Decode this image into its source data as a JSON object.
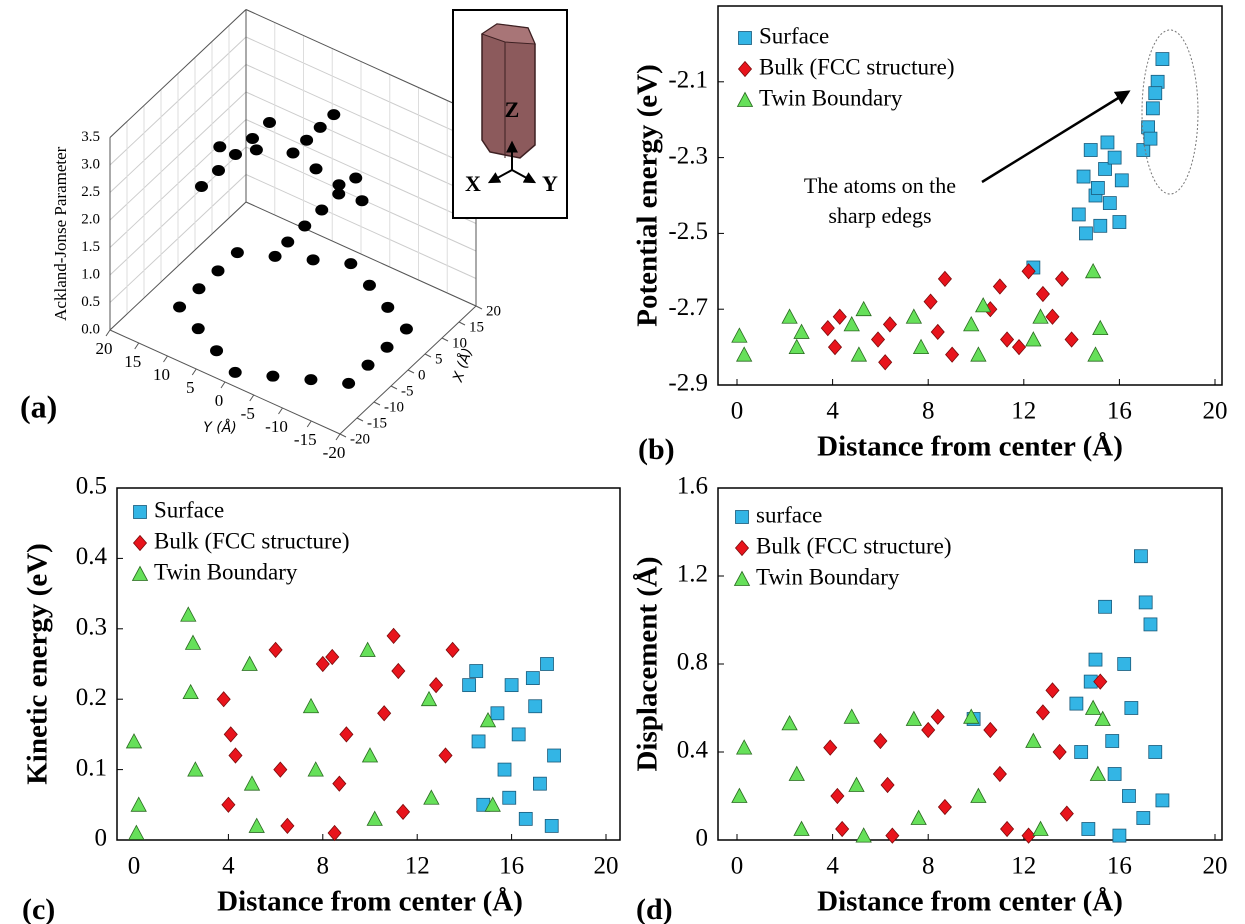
{
  "chart_data": [
    {
      "type": "scatter3d",
      "panel_label": "(a)",
      "zlabel": "Ackland-Jonse Parameter",
      "ylabel": "Y (Å)",
      "xlabel": "X (Å)",
      "inset_labels": [
        "Z",
        "X",
        "Y"
      ],
      "color": "#000000",
      "xlim": [
        -20,
        20
      ],
      "ylim": [
        -20,
        20
      ],
      "zlim": [
        0,
        3.5
      ],
      "xticks": [
        20,
        15,
        10,
        5,
        0,
        -5,
        -10,
        -15,
        -20
      ],
      "yticks": [
        20,
        15,
        10,
        5,
        0,
        -5,
        -10,
        -15,
        -20
      ],
      "zticks": [
        {
          "value": 0,
          "label": "0.0"
        },
        0.5,
        {
          "value": 1,
          "label": "1.0"
        },
        1.5,
        {
          "value": 2,
          "label": "2.0"
        },
        2.5,
        {
          "value": 3,
          "label": "3.0"
        },
        3.5
      ],
      "x": [
        17,
        14.2,
        11.3,
        8.5,
        2.8,
        -2.8,
        -8.5,
        -11.3,
        -14.2,
        -17,
        -14.2,
        -11.3,
        -8.5,
        -2.8,
        2.8,
        8.5,
        11.3,
        14.2,
        0,
        4,
        8,
        12,
        -4,
        -8,
        0,
        0,
        0,
        10,
        5,
        0,
        -5,
        -10,
        10,
        5,
        0,
        -5,
        -10
      ],
      "y": [
        0,
        4.9,
        9.8,
        14.7,
        14.7,
        14.7,
        14.7,
        9.8,
        4.9,
        0,
        -4.9,
        -9.8,
        -14.7,
        -14.7,
        -14.7,
        -14.7,
        -9.8,
        -4.9,
        0,
        0,
        0,
        0,
        4,
        8,
        -4,
        -8,
        -12,
        10,
        10,
        10,
        10,
        10,
        -5,
        -5,
        -5,
        -5,
        -5
      ],
      "z": [
        0,
        0,
        0,
        0,
        0,
        0,
        0,
        0,
        0,
        0,
        0,
        0,
        0,
        0,
        0,
        0,
        0,
        0,
        3.0,
        3.0,
        3.0,
        3.0,
        3.1,
        3.2,
        2.9,
        2.8,
        2.7,
        2.5,
        2.5,
        2.5,
        2.5,
        2.5,
        2.2,
        2.2,
        2.2,
        2.2,
        2.2
      ]
    },
    {
      "type": "scatter",
      "panel_label": "(b)",
      "xlabel": "Distance from center (Å)",
      "ylabel": "Potential energy (eV)",
      "xlim": [
        0,
        20
      ],
      "ylim": [
        -2.9,
        -1.9
      ],
      "xticks": [
        0,
        4,
        8,
        12,
        16,
        20
      ],
      "yticks": [
        -2.9,
        -2.7,
        -2.5,
        -2.3,
        -2.1
      ],
      "legend": "upper left",
      "annotation": [
        "The atoms on the",
        "sharp edegs"
      ],
      "series": [
        {
          "name": "Surface",
          "color": "#33b5e5",
          "marker": "square",
          "x": [
            14.3,
            14.5,
            14.8,
            15.0,
            15.2,
            15.4,
            15.6,
            15.8,
            16.0,
            14.6,
            15.1,
            15.5,
            16.1,
            17.0,
            17.2,
            17.4,
            17.6,
            17.8,
            17.3,
            17.5,
            12.4
          ],
          "values": [
            -2.45,
            -2.35,
            -2.28,
            -2.4,
            -2.48,
            -2.33,
            -2.42,
            -2.3,
            -2.47,
            -2.5,
            -2.38,
            -2.26,
            -2.36,
            -2.28,
            -2.22,
            -2.17,
            -2.1,
            -2.04,
            -2.25,
            -2.13,
            -2.59
          ]
        },
        {
          "name": "Bulk (FCC structure)",
          "color": "#e8141c",
          "marker": "diamond",
          "x": [
            3.8,
            4.1,
            4.3,
            5.9,
            6.2,
            6.4,
            8.1,
            8.4,
            8.7,
            9.0,
            10.6,
            11.0,
            11.3,
            11.8,
            12.8,
            13.2,
            13.6,
            14.0,
            12.2
          ],
          "values": [
            -2.75,
            -2.8,
            -2.72,
            -2.78,
            -2.84,
            -2.74,
            -2.68,
            -2.76,
            -2.62,
            -2.82,
            -2.7,
            -2.64,
            -2.78,
            -2.8,
            -2.66,
            -2.72,
            -2.62,
            -2.78,
            -2.6
          ]
        },
        {
          "name": "Twin Boundary",
          "color": "#66e05a",
          "marker": "triangle",
          "x": [
            0.1,
            0.3,
            2.2,
            2.5,
            2.7,
            4.8,
            5.1,
            5.3,
            7.4,
            7.7,
            9.8,
            10.1,
            10.3,
            12.4,
            12.7,
            14.9,
            15.2,
            15.0
          ],
          "values": [
            -2.77,
            -2.82,
            -2.72,
            -2.8,
            -2.76,
            -2.74,
            -2.82,
            -2.7,
            -2.72,
            -2.8,
            -2.74,
            -2.82,
            -2.69,
            -2.78,
            -2.72,
            -2.6,
            -2.75,
            -2.82
          ]
        }
      ]
    },
    {
      "type": "scatter",
      "panel_label": "(c)",
      "xlabel": "Distance from center (Å)",
      "ylabel": "Kinetic energy (eV)",
      "xlim": [
        0,
        20
      ],
      "ylim": [
        0,
        0.5
      ],
      "xticks": [
        0,
        4,
        8,
        12,
        16,
        20
      ],
      "yticks": [
        0,
        0.1,
        0.2,
        0.3,
        0.4,
        0.5
      ],
      "legend": "upper left",
      "series": [
        {
          "name": "Surface",
          "color": "#33b5e5",
          "marker": "square",
          "x": [
            14.2,
            14.5,
            14.8,
            15.4,
            15.7,
            16.0,
            16.3,
            16.6,
            16.9,
            17.2,
            17.5,
            17.8,
            14.6,
            15.9,
            17.0,
            17.7
          ],
          "values": [
            0.22,
            0.24,
            0.05,
            0.18,
            0.1,
            0.22,
            0.15,
            0.03,
            0.23,
            0.08,
            0.25,
            0.12,
            0.14,
            0.06,
            0.19,
            0.02
          ]
        },
        {
          "name": "Bulk (FCC structure)",
          "color": "#e8141c",
          "marker": "diamond",
          "x": [
            3.8,
            4.0,
            4.3,
            6.0,
            6.2,
            6.5,
            8.0,
            8.4,
            8.7,
            9.0,
            10.6,
            11.0,
            11.4,
            12.8,
            13.2,
            13.5,
            4.1,
            8.5,
            11.2
          ],
          "values": [
            0.2,
            0.05,
            0.12,
            0.27,
            0.1,
            0.02,
            0.25,
            0.26,
            0.08,
            0.15,
            0.18,
            0.29,
            0.04,
            0.22,
            0.12,
            0.27,
            0.15,
            0.01,
            0.24
          ]
        },
        {
          "name": "Twin Boundary",
          "color": "#66e05a",
          "marker": "triangle",
          "x": [
            0.0,
            0.2,
            2.3,
            2.4,
            2.6,
            2.5,
            4.9,
            5.0,
            5.2,
            7.5,
            7.7,
            9.9,
            10.0,
            10.2,
            12.5,
            12.6,
            15.0,
            15.2,
            0.1
          ],
          "values": [
            0.14,
            0.05,
            0.32,
            0.21,
            0.1,
            0.28,
            0.25,
            0.08,
            0.02,
            0.19,
            0.1,
            0.27,
            0.12,
            0.03,
            0.2,
            0.06,
            0.17,
            0.05,
            0.01
          ]
        }
      ]
    },
    {
      "type": "scatter",
      "panel_label": "(d)",
      "xlabel": "Distance from center (Å)",
      "ylabel": "Displacement (Å)",
      "xlim": [
        0,
        20
      ],
      "ylim": [
        0,
        1.6
      ],
      "xticks": [
        0,
        4,
        8,
        12,
        16,
        20
      ],
      "yticks": [
        0,
        0.4,
        0.8,
        1.2,
        1.6
      ],
      "legend": "upper left",
      "series": [
        {
          "name": "surface",
          "color": "#33b5e5",
          "marker": "square",
          "x": [
            14.2,
            14.4,
            14.7,
            15.0,
            15.4,
            15.7,
            16.0,
            16.2,
            16.5,
            16.9,
            17.1,
            17.3,
            17.5,
            17.8,
            15.8,
            17.0,
            14.8,
            16.4,
            9.9
          ],
          "values": [
            0.62,
            0.4,
            0.05,
            0.82,
            1.06,
            0.45,
            0.02,
            0.8,
            0.6,
            1.29,
            1.08,
            0.98,
            0.4,
            0.18,
            0.3,
            0.1,
            0.72,
            0.2,
            0.55
          ]
        },
        {
          "name": "Bulk (FCC structure)",
          "color": "#e8141c",
          "marker": "diamond",
          "x": [
            3.9,
            4.2,
            4.4,
            6.0,
            6.3,
            6.5,
            8.0,
            8.4,
            8.7,
            10.6,
            11.0,
            11.3,
            12.8,
            13.2,
            13.5,
            13.8,
            15.2,
            12.2
          ],
          "values": [
            0.42,
            0.2,
            0.05,
            0.45,
            0.25,
            0.02,
            0.5,
            0.56,
            0.15,
            0.5,
            0.3,
            0.05,
            0.58,
            0.68,
            0.4,
            0.12,
            0.72,
            0.02
          ]
        },
        {
          "name": "Twin Boundary",
          "color": "#66e05a",
          "marker": "triangle",
          "x": [
            0.1,
            0.3,
            2.2,
            2.5,
            2.7,
            4.8,
            5.0,
            5.3,
            7.4,
            7.6,
            9.8,
            10.1,
            12.4,
            12.7,
            14.9,
            15.1,
            15.3
          ],
          "values": [
            0.2,
            0.42,
            0.53,
            0.3,
            0.05,
            0.56,
            0.25,
            0.02,
            0.55,
            0.1,
            0.56,
            0.2,
            0.45,
            0.05,
            0.6,
            0.3,
            0.55
          ]
        }
      ]
    }
  ]
}
